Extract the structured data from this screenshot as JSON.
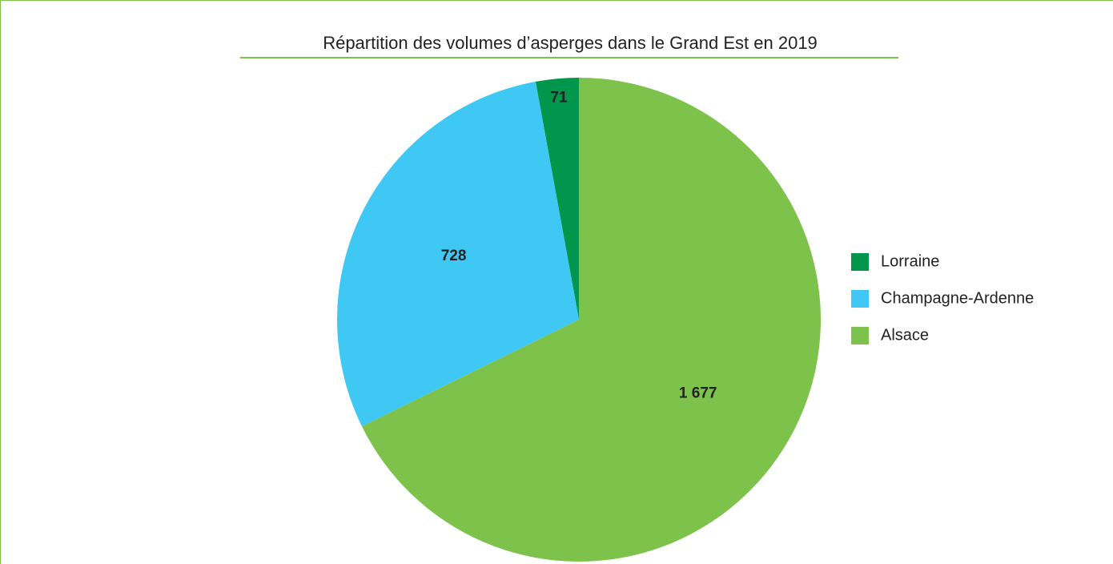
{
  "chart_data": {
    "type": "pie",
    "title": "Répartition des volumes d’asperges dans le Grand Est en 2019",
    "categories": [
      "Lorraine",
      "Champagne-Ardenne",
      "Alsace"
    ],
    "values": [
      71,
      728,
      1677
    ],
    "value_labels": [
      "71",
      "728",
      "1 677"
    ],
    "colors": [
      "#00964b",
      "#40c8f4",
      "#7dc24b"
    ],
    "legend": "right"
  }
}
